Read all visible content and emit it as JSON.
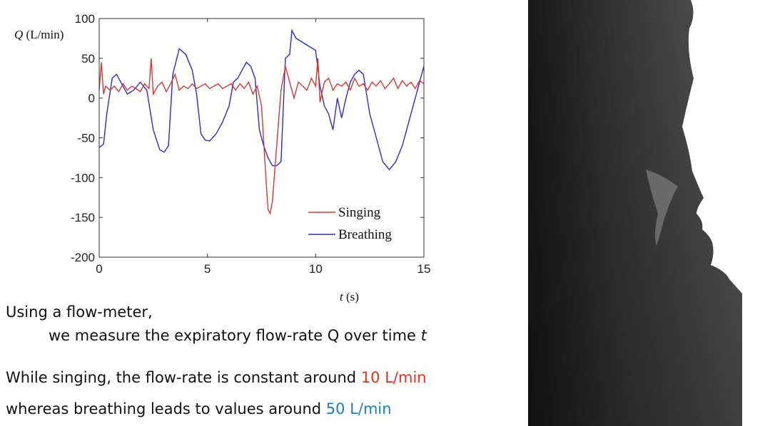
{
  "chart_data": {
    "type": "line",
    "ylabel": "Q (L/min)",
    "xlabel": "t (s)",
    "xlim": [
      0,
      15
    ],
    "ylim": [
      -200,
      100
    ],
    "xticks": [
      "0",
      "5",
      "10",
      "15"
    ],
    "yticks": [
      "100",
      "50",
      "0",
      "-50",
      "-100",
      "-150",
      "-200"
    ],
    "legend_position": "bottom-right",
    "grid": false,
    "series": [
      {
        "name": "Breathing",
        "color": "#2a2ad0",
        "x": [
          0,
          0.2,
          0.35,
          0.6,
          0.8,
          1.0,
          1.3,
          1.6,
          1.9,
          2.2,
          2.5,
          2.8,
          3.0,
          3.2,
          3.4,
          3.7,
          4.0,
          4.3,
          4.5,
          4.7,
          4.9,
          5.1,
          5.4,
          5.7,
          6.0,
          6.2,
          6.4,
          6.6,
          6.8,
          7.0,
          7.2,
          7.4,
          7.6,
          7.8,
          8.0,
          8.2,
          8.4,
          8.6,
          8.8,
          8.9,
          9.1,
          9.4,
          9.7,
          10.0,
          10.2,
          10.4,
          10.6,
          10.8,
          11.0,
          11.2,
          11.4,
          11.6,
          11.8,
          12.0,
          12.2,
          12.5,
          12.8,
          13.1,
          13.4,
          13.7,
          14.0,
          14.3,
          14.6,
          14.8,
          15.0
        ],
        "y": [
          -62,
          -58,
          -20,
          25,
          30,
          20,
          5,
          10,
          20,
          10,
          -40,
          -65,
          -68,
          -60,
          30,
          62,
          55,
          35,
          5,
          -45,
          -53,
          -54,
          -45,
          -30,
          -10,
          20,
          25,
          35,
          45,
          40,
          25,
          -40,
          -60,
          -75,
          -85,
          -85,
          -80,
          50,
          55,
          85,
          75,
          70,
          65,
          60,
          15,
          -10,
          -20,
          -40,
          0,
          -25,
          0,
          20,
          30,
          35,
          30,
          -20,
          -50,
          -80,
          -90,
          -80,
          -60,
          -30,
          0,
          20,
          40
        ]
      },
      {
        "name": "Singing",
        "color": "#d8382a",
        "x": [
          0,
          0.1,
          0.2,
          0.3,
          0.5,
          0.7,
          0.9,
          1.1,
          1.3,
          1.5,
          1.7,
          1.9,
          2.1,
          2.3,
          2.4,
          2.5,
          2.7,
          2.9,
          3.1,
          3.3,
          3.5,
          3.7,
          3.9,
          4.1,
          4.3,
          4.5,
          4.7,
          4.9,
          5.1,
          5.3,
          5.5,
          5.7,
          5.9,
          6.1,
          6.3,
          6.5,
          6.7,
          6.9,
          7.1,
          7.3,
          7.5,
          7.7,
          7.8,
          7.9,
          8.0,
          8.2,
          8.4,
          8.6,
          8.8,
          9.0,
          9.2,
          9.4,
          9.6,
          9.8,
          10.0,
          10.1,
          10.2,
          10.4,
          10.6,
          10.8,
          11.0,
          11.2,
          11.4,
          11.6,
          11.8,
          12.0,
          12.2,
          12.4,
          12.6,
          12.8,
          13.0,
          13.2,
          13.4,
          13.6,
          13.8,
          14.0,
          14.2,
          14.4,
          14.6,
          14.8,
          15.0
        ],
        "y": [
          10,
          45,
          5,
          15,
          10,
          15,
          8,
          18,
          10,
          15,
          12,
          8,
          18,
          12,
          50,
          5,
          15,
          20,
          8,
          18,
          30,
          10,
          15,
          12,
          18,
          12,
          15,
          18,
          12,
          15,
          18,
          12,
          15,
          18,
          10,
          18,
          12,
          20,
          5,
          15,
          -10,
          -100,
          -140,
          -145,
          -130,
          -60,
          10,
          40,
          20,
          0,
          20,
          15,
          10,
          25,
          15,
          50,
          -5,
          20,
          25,
          10,
          18,
          15,
          20,
          10,
          25,
          15,
          18,
          10,
          20,
          15,
          22,
          12,
          18,
          25,
          12,
          22,
          15,
          20,
          12,
          22,
          18
        ]
      }
    ]
  },
  "caption": {
    "line1": "Using a flow-meter,",
    "line2a": "we measure the expiratory flow-rate Q over time ",
    "line2b": "t",
    "line3a": "While singing, the flow-rate is constant around ",
    "line3b": "10 L/min",
    "line4a": "whereas breathing leads to values around ",
    "line4b": "50 L/min"
  },
  "colors": {
    "highlight_red": "#e8321e",
    "highlight_blue": "#1d7ec2"
  }
}
